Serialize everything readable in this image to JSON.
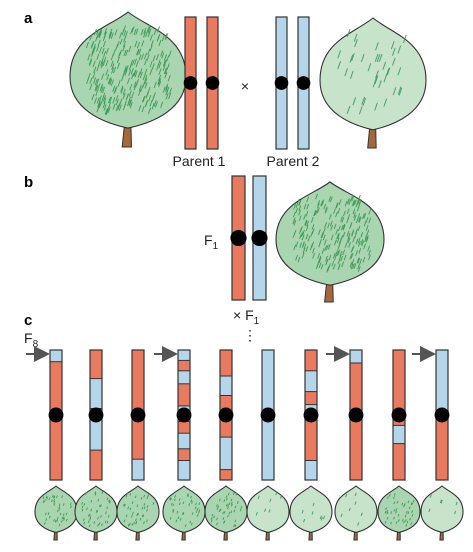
{
  "panels": {
    "a": "a",
    "b": "b",
    "c": "c"
  },
  "labels": {
    "parent1": "Parent 1",
    "parent2": "Parent 2",
    "cross": "×",
    "f1_main": "F",
    "f1_sub": "1",
    "cross_f1": "× F",
    "cross_f1_sub": "1",
    "f8_main": "F",
    "f8_sub": "8",
    "dots": "⋮"
  },
  "colors": {
    "red": "#e97a5f",
    "blue": "#b5d6ea",
    "centromere": "#000000",
    "leaf_hairy": "#a9d5b0",
    "leaf_smooth": "#c7e4cb",
    "stem": "#a26a3c"
  },
  "f8_lines": [
    {
      "arrow": true,
      "segments": [
        [
          "blue",
          0,
          0.09
        ],
        [
          "red",
          0.09,
          1
        ]
      ]
    },
    {
      "arrow": false,
      "segments": [
        [
          "red",
          0,
          0.22
        ],
        [
          "blue",
          0.22,
          0.45
        ],
        [
          "red",
          0.45,
          0.52
        ],
        [
          "blue",
          0.52,
          0.77
        ],
        [
          "red",
          0.77,
          1
        ]
      ]
    },
    {
      "arrow": false,
      "segments": [
        [
          "red",
          0,
          0.84
        ],
        [
          "blue",
          0.84,
          1
        ]
      ]
    },
    {
      "arrow": true,
      "segments": [
        [
          "blue",
          0,
          0.08
        ],
        [
          "red",
          0.08,
          0.16
        ],
        [
          "blue",
          0.16,
          0.26
        ],
        [
          "red",
          0.26,
          0.43
        ],
        [
          "blue",
          0.43,
          0.55
        ],
        [
          "red",
          0.55,
          0.64
        ],
        [
          "blue",
          0.64,
          0.76
        ],
        [
          "red",
          0.76,
          0.85
        ],
        [
          "blue",
          0.85,
          1
        ]
      ]
    },
    {
      "arrow": false,
      "segments": [
        [
          "red",
          0,
          0.2
        ],
        [
          "blue",
          0.2,
          0.35
        ],
        [
          "red",
          0.35,
          0.67
        ],
        [
          "blue",
          0.67,
          0.92
        ],
        [
          "red",
          0.92,
          1
        ]
      ]
    },
    {
      "arrow": false,
      "segments": [
        [
          "blue",
          0,
          1
        ]
      ]
    },
    {
      "arrow": false,
      "segments": [
        [
          "red",
          0,
          0.16
        ],
        [
          "blue",
          0.16,
          0.32
        ],
        [
          "red",
          0.32,
          0.42
        ],
        [
          "blue",
          0.42,
          0.48
        ],
        [
          "red",
          0.48,
          0.85
        ],
        [
          "blue",
          0.85,
          1
        ]
      ]
    },
    {
      "arrow": true,
      "segments": [
        [
          "blue",
          0,
          0.1
        ],
        [
          "red",
          0.1,
          1
        ]
      ]
    },
    {
      "arrow": false,
      "segments": [
        [
          "red",
          0,
          0.58
        ],
        [
          "blue",
          0.58,
          0.72
        ],
        [
          "red",
          0.72,
          1
        ]
      ]
    },
    {
      "arrow": true,
      "segments": [
        [
          "blue",
          0,
          0.52
        ],
        [
          "red",
          0.52,
          1
        ]
      ]
    }
  ],
  "f8_leaves": [
    "hairy",
    "hairy",
    "hairy",
    "hairy",
    "hairy",
    "smooth",
    "smooth",
    "smooth",
    "hairy",
    "smooth"
  ]
}
